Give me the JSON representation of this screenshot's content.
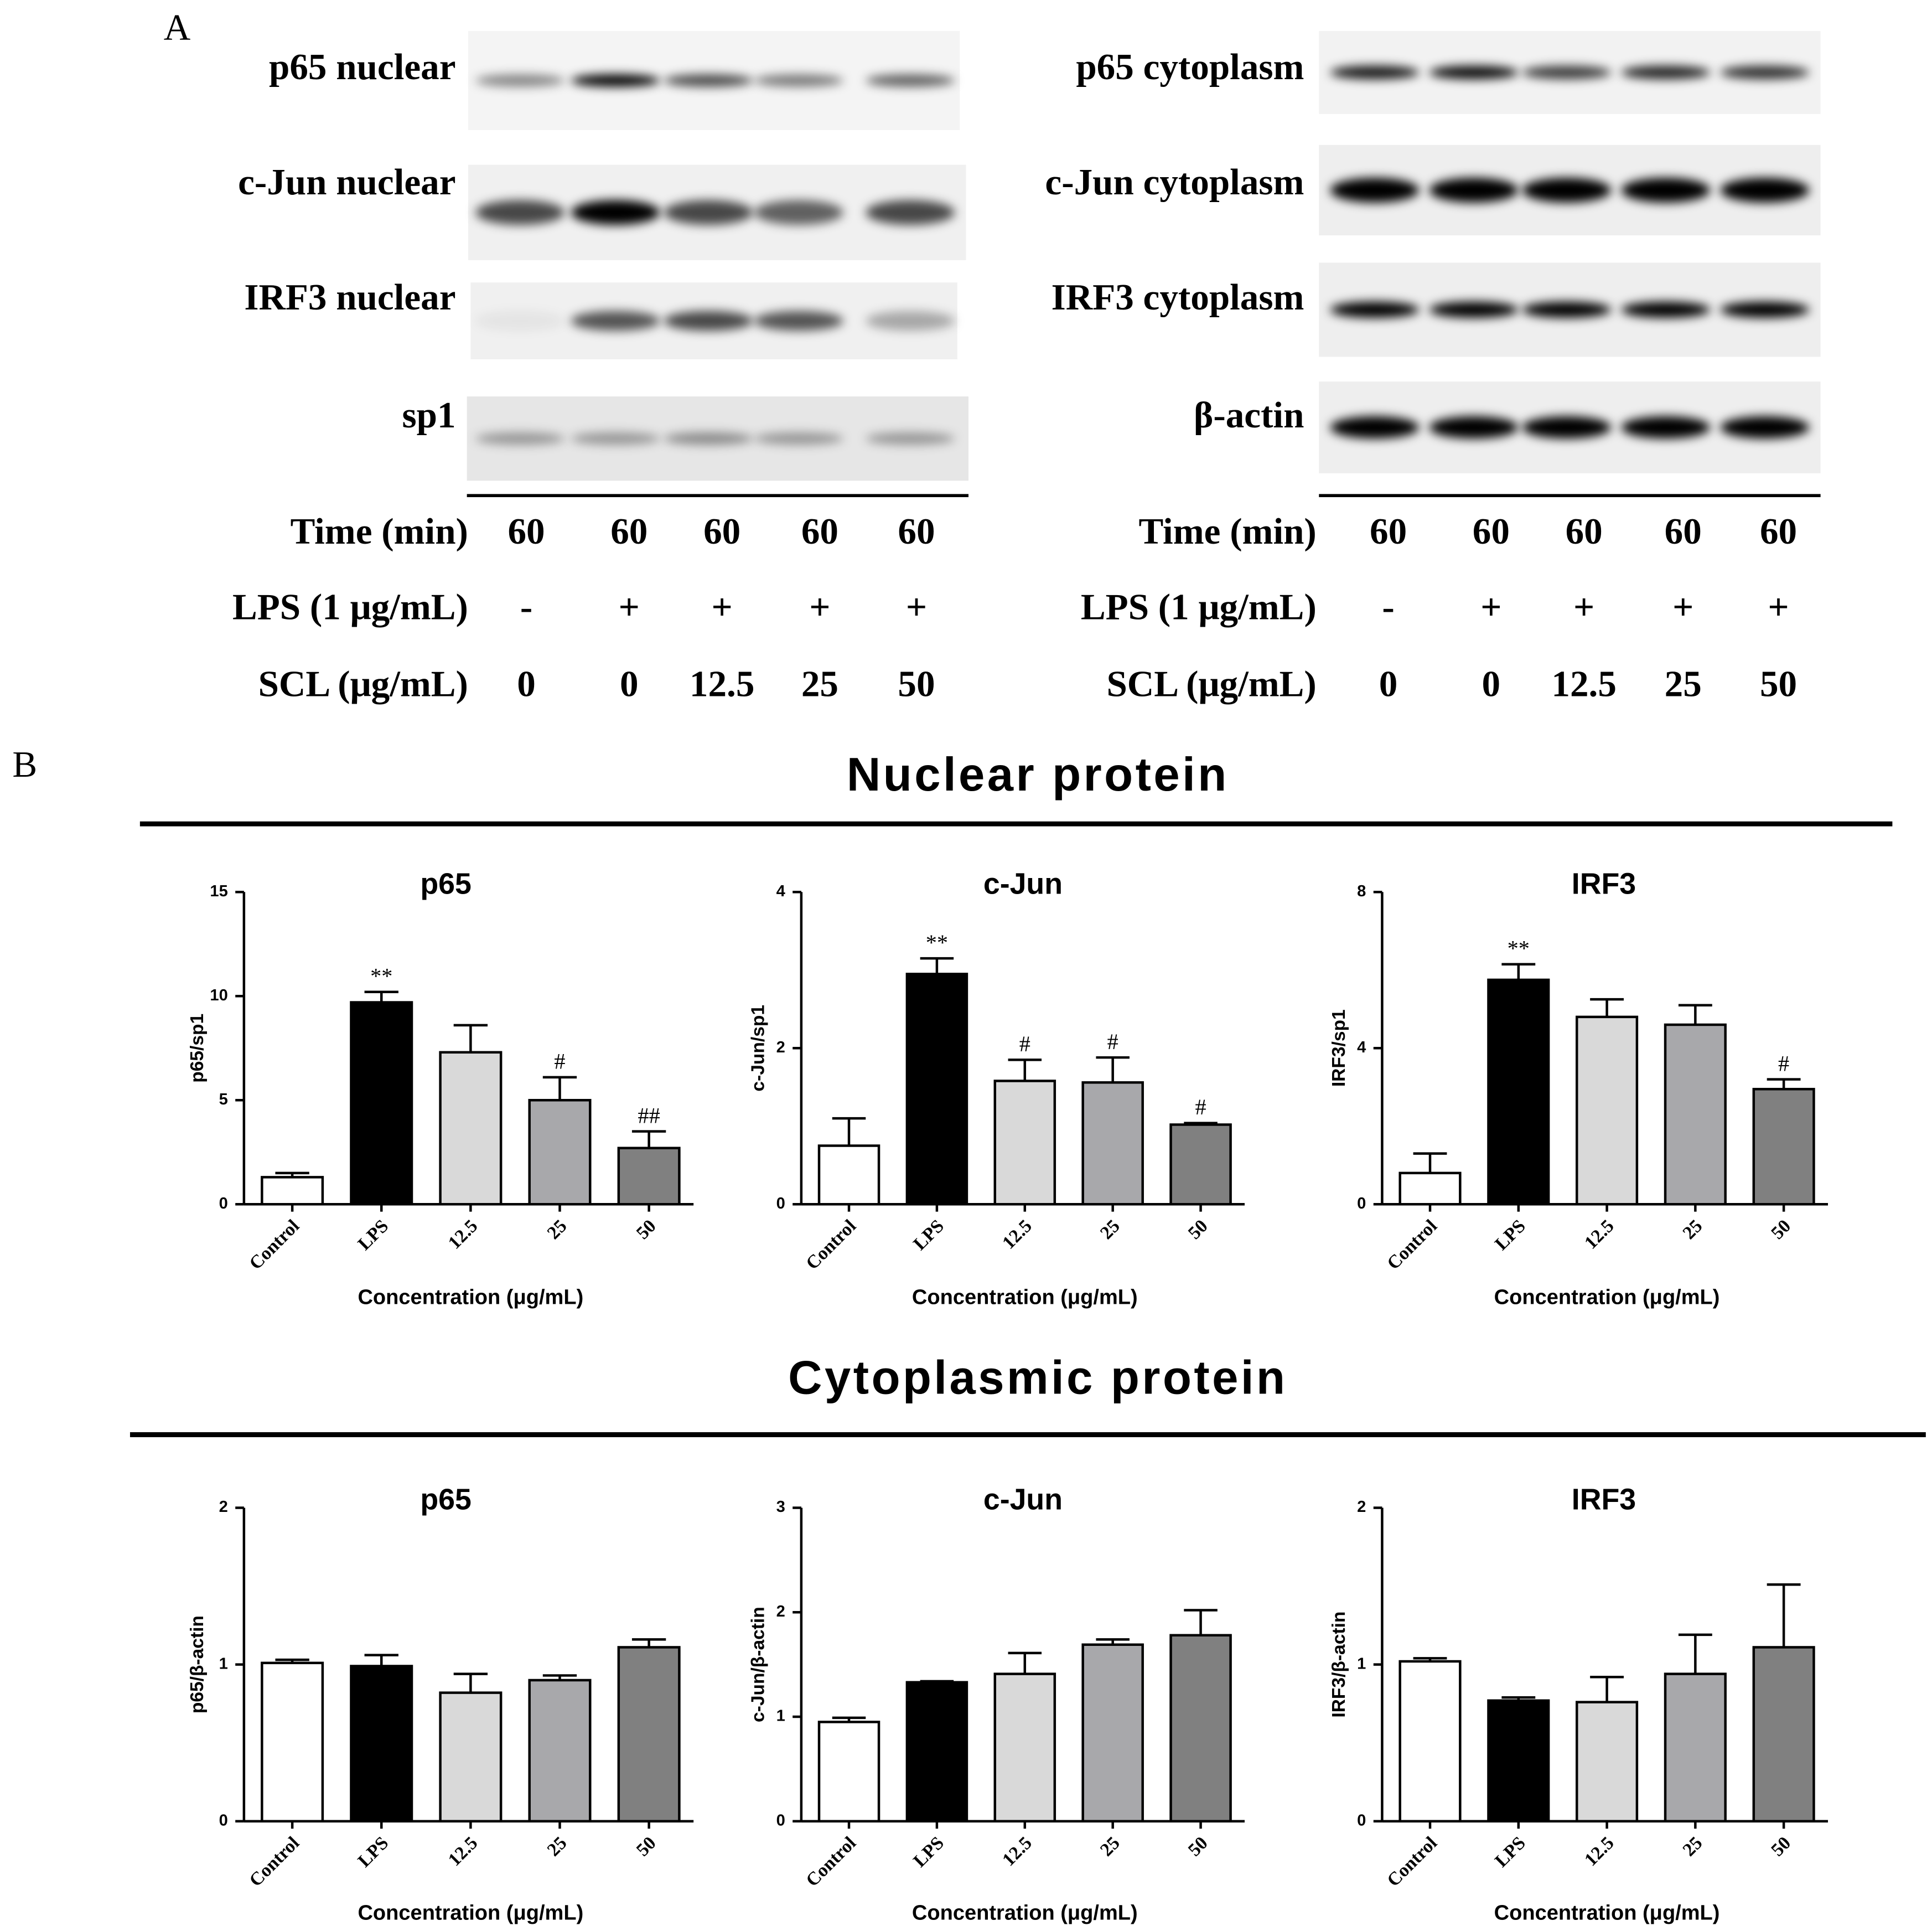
{
  "figure": {
    "panel_a_label": "A",
    "panel_b_label": "B",
    "nuclear_title": "Nuclear protein",
    "cytoplasmic_title": "Cytoplasmic protein"
  },
  "blots": {
    "left": {
      "proteins": [
        "p65 nuclear",
        "c-Jun nuclear",
        "IRF3 nuclear",
        "sp1"
      ],
      "conditions": [
        {
          "label": "Time (min)",
          "values": [
            60,
            60,
            60,
            60,
            60
          ]
        },
        {
          "label": "LPS (1 μg/mL)",
          "values": [
            "-",
            "+",
            "+",
            "+",
            "+"
          ]
        },
        {
          "label": "SCL (μg/mL)",
          "values": [
            0,
            0,
            12.5,
            25,
            50
          ]
        }
      ]
    },
    "right": {
      "proteins": [
        "p65 cytoplasm",
        "c-Jun cytoplasm",
        "IRF3 cytoplasm",
        "β-actin"
      ],
      "conditions": [
        {
          "label": "Time (min)",
          "values": [
            60,
            60,
            60,
            60,
            60
          ]
        },
        {
          "label": "LPS (1 μg/mL)",
          "values": [
            "-",
            "+",
            "+",
            "+",
            "+"
          ]
        },
        {
          "label": "SCL (μg/mL)",
          "values": [
            0,
            0,
            12.5,
            25,
            50
          ]
        }
      ]
    }
  },
  "chart_data": [
    {
      "type": "bar",
      "title": "p65",
      "y_label": "p65/sp1",
      "x_label": "Concentration (μg/mL)",
      "categories": [
        "Control",
        "LPS",
        "12.5",
        "25",
        "50"
      ],
      "values": [
        1.3,
        9.7,
        7.3,
        5.0,
        2.7
      ],
      "errors": [
        0.2,
        0.5,
        1.3,
        1.1,
        0.8
      ],
      "annotations": [
        null,
        "**",
        null,
        "#",
        "##"
      ],
      "colors": [
        "#ffffff",
        "#000000",
        "#d9d9d9",
        "#a8a8ab",
        "#808080"
      ],
      "ylim": [
        0,
        15
      ],
      "yticks": [
        0,
        5,
        10,
        15
      ]
    },
    {
      "type": "bar",
      "title": "c-Jun",
      "y_label": "c-Jun/sp1",
      "x_label": "Concentration (μg/mL)",
      "categories": [
        "Control",
        "LPS",
        "12.5",
        "25",
        "50"
      ],
      "values": [
        0.75,
        2.95,
        1.58,
        1.56,
        1.02
      ],
      "errors": [
        0.35,
        0.2,
        0.27,
        0.32,
        0.02
      ],
      "annotations": [
        null,
        "**",
        "#",
        "#",
        "#"
      ],
      "colors": [
        "#ffffff",
        "#000000",
        "#d9d9d9",
        "#a8a8ab",
        "#808080"
      ],
      "ylim": [
        0,
        4
      ],
      "yticks": [
        0,
        2,
        4
      ]
    },
    {
      "type": "bar",
      "title": "IRF3",
      "y_label": "IRF3/sp1",
      "x_label": "Concentration (μg/mL)",
      "categories": [
        "Control",
        "LPS",
        "12.5",
        "25",
        "50"
      ],
      "values": [
        0.8,
        5.75,
        4.8,
        4.6,
        2.95
      ],
      "errors": [
        0.5,
        0.4,
        0.45,
        0.5,
        0.25
      ],
      "annotations": [
        null,
        "**",
        null,
        null,
        "#"
      ],
      "colors": [
        "#ffffff",
        "#000000",
        "#d9d9d9",
        "#a8a8ab",
        "#808080"
      ],
      "ylim": [
        0,
        8
      ],
      "yticks": [
        0,
        4,
        8
      ]
    },
    {
      "type": "bar",
      "title": "p65",
      "y_label": "p65/β-actin",
      "x_label": "Concentration (μg/mL)",
      "categories": [
        "Control",
        "LPS",
        "12.5",
        "25",
        "50"
      ],
      "values": [
        1.01,
        0.99,
        0.82,
        0.9,
        1.11
      ],
      "errors": [
        0.02,
        0.07,
        0.12,
        0.03,
        0.05
      ],
      "colors": [
        "#ffffff",
        "#000000",
        "#d9d9d9",
        "#a8a8ab",
        "#808080"
      ],
      "ylim": [
        0,
        2
      ],
      "yticks": [
        0,
        1,
        2
      ]
    },
    {
      "type": "bar",
      "title": "c-Jun",
      "y_label": "c-Jun/β-actin",
      "x_label": "Concentration (μg/mL)",
      "categories": [
        "Control",
        "LPS",
        "12.5",
        "25",
        "50"
      ],
      "values": [
        0.95,
        1.33,
        1.41,
        1.69,
        1.78
      ],
      "errors": [
        0.04,
        0.01,
        0.2,
        0.05,
        0.24
      ],
      "colors": [
        "#ffffff",
        "#000000",
        "#d9d9d9",
        "#a8a8ab",
        "#808080"
      ],
      "ylim": [
        0,
        3
      ],
      "yticks": [
        0,
        1,
        2,
        3
      ]
    },
    {
      "type": "bar",
      "title": "IRF3",
      "y_label": "IRF3/β-actin",
      "x_label": "Concentration (μg/mL)",
      "categories": [
        "Control",
        "LPS",
        "12.5",
        "25",
        "50"
      ],
      "values": [
        1.02,
        0.77,
        0.76,
        0.94,
        1.11
      ],
      "errors": [
        0.02,
        0.02,
        0.16,
        0.25,
        0.4
      ],
      "colors": [
        "#ffffff",
        "#000000",
        "#d9d9d9",
        "#a8a8ab",
        "#808080"
      ],
      "ylim": [
        0,
        2
      ],
      "yticks": [
        0,
        1,
        2
      ]
    }
  ]
}
